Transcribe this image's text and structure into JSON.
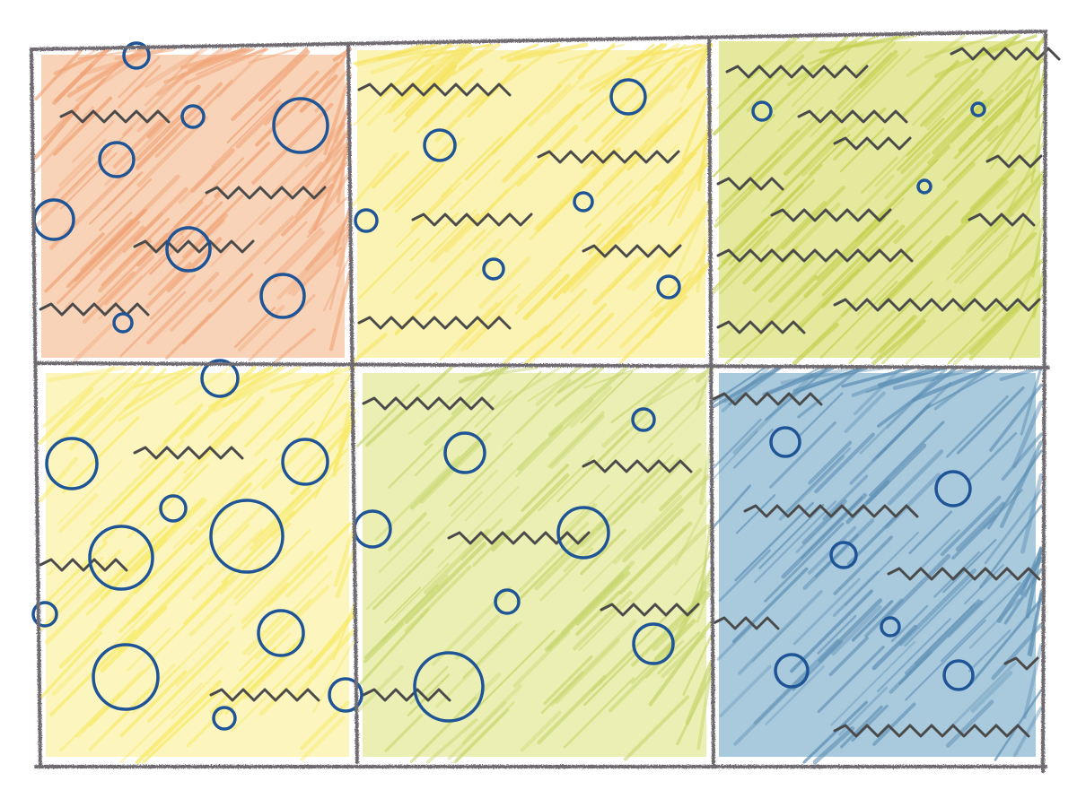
{
  "colors": {
    "paper": "#ffffff",
    "grid_line": "#6e6a70",
    "wave": "#4a4a4a",
    "circle": "#1f5596"
  },
  "panels": [
    {
      "id": "top-left",
      "fill": "#f0a376",
      "fill_secondary": "#f6c4a0"
    },
    {
      "id": "top-middle",
      "fill": "#f6e45e",
      "fill_secondary": "#f9ef9a"
    },
    {
      "id": "top-right",
      "fill": "#c3d04e",
      "fill_secondary": "#dbe27e"
    },
    {
      "id": "bottom-left",
      "fill": "#f7ea67",
      "fill_secondary": "#fbf2a8"
    },
    {
      "id": "bottom-middle",
      "fill": "#c7d670",
      "fill_secondary": "#e4ea9a"
    },
    {
      "id": "bottom-right",
      "fill": "#5d8fb3",
      "fill_secondary": "#8cb7d2"
    }
  ]
}
